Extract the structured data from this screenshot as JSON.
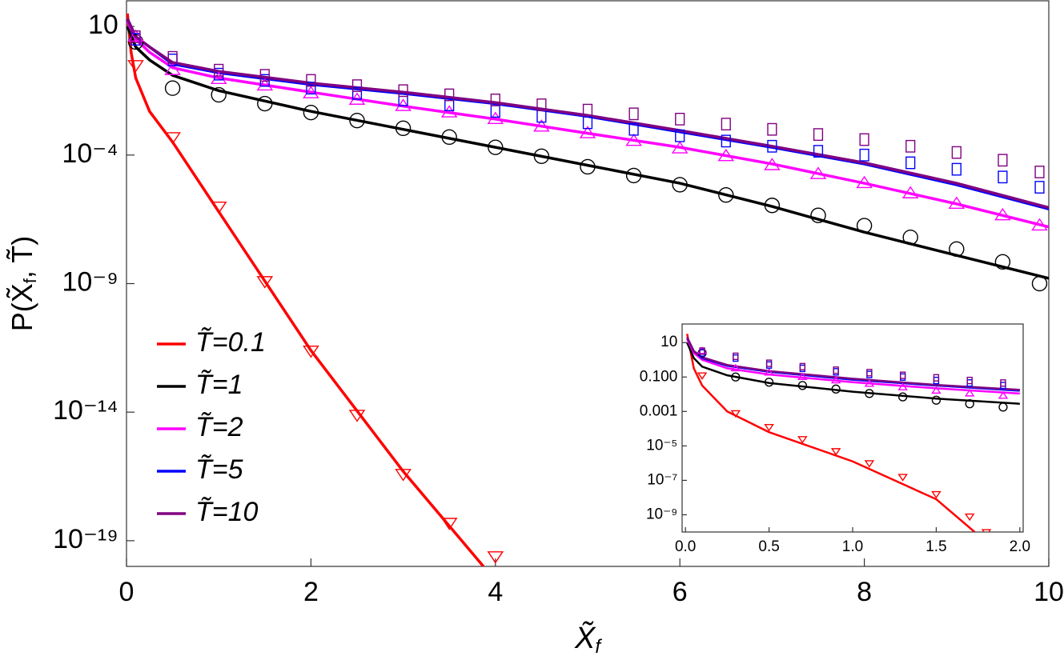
{
  "chart_data": [
    {
      "type": "line",
      "log_y": true,
      "xlabel": [
        "X̃",
        "f"
      ],
      "ylabel": [
        "P(X̃",
        "f",
        ", T̃)"
      ],
      "xlim": [
        0,
        10
      ],
      "ylim": [
        1e-20,
        100
      ],
      "xticks": [
        0,
        2,
        4,
        6,
        8,
        10
      ],
      "yticks": [
        10,
        {
          "value": 0.0001,
          "label": "10⁻⁴"
        },
        {
          "value": 1e-09,
          "label": "10⁻⁹"
        },
        {
          "value": 1e-14,
          "label": "10⁻¹⁴"
        },
        {
          "value": 1e-19,
          "label": "10⁻¹⁹"
        }
      ],
      "legend": "lower left",
      "series": [
        {
          "name": "T̃=0.1",
          "color": "#ff0000",
          "x": [
            0.01,
            0.05,
            0.1,
            0.25,
            0.5,
            1,
            2,
            3,
            3.87
          ],
          "values": [
            32,
            1,
            0.1,
            0.005,
            0.00032,
            6.3e-07,
            2.5e-12,
            5e-17,
            1e-20
          ]
        },
        {
          "name": "T̃=1",
          "color": "#000000",
          "x": [
            0.01,
            0.1,
            0.25,
            0.5,
            1,
            2,
            3,
            4,
            5,
            6,
            7,
            8,
            9,
            10
          ],
          "values": [
            10,
            1.6,
            0.5,
            0.126,
            0.032,
            0.005,
            0.001,
            0.0002,
            4e-05,
            8e-06,
            1e-06,
            1e-07,
            1.26e-08,
            1.6e-09
          ]
        },
        {
          "name": "T̃=2",
          "color": "#ff00ff",
          "x": [
            0.01,
            0.1,
            0.25,
            0.5,
            1,
            2,
            3,
            4,
            5,
            6,
            7,
            8,
            9,
            10
          ],
          "values": [
            16,
            3.2,
            1,
            0.25,
            0.1,
            0.028,
            0.008,
            0.0025,
            0.0007,
            0.0002,
            4.5e-05,
            8e-06,
            1.26e-06,
            1.6e-07
          ]
        },
        {
          "name": "T̃=5",
          "color": "#0000ff",
          "x": [
            0.01,
            0.1,
            0.25,
            0.5,
            1,
            2,
            3,
            4,
            5,
            6,
            7,
            8,
            9,
            10
          ],
          "values": [
            20,
            4,
            1.6,
            0.35,
            0.16,
            0.056,
            0.025,
            0.01,
            0.0032,
            0.0008,
            0.0002,
            4.5e-05,
            7e-06,
            8e-07
          ]
        },
        {
          "name": "T̃=10",
          "color": "#800080",
          "x": [
            0.01,
            0.1,
            0.25,
            0.5,
            1,
            2,
            3,
            4,
            5,
            6,
            7,
            8,
            9,
            10
          ],
          "values": [
            20,
            4,
            1.6,
            0.4,
            0.18,
            0.063,
            0.028,
            0.011,
            0.0035,
            0.0009,
            0.00022,
            5e-05,
            8e-06,
            9e-07
          ]
        },
        {
          "color": "#ff0000",
          "marker": "triangle-down",
          "x": [
            0.1,
            0.5,
            1,
            1.5,
            2,
            2.5,
            3,
            3.5,
            4
          ],
          "values": [
            0.32,
            0.0005,
            1e-06,
            1.26e-09,
            2.5e-12,
            8e-15,
            4e-17,
            5e-19,
            2.5e-20
          ]
        },
        {
          "color": "#000000",
          "marker": "circle",
          "x": [
            0.1,
            0.5,
            1,
            1.5,
            2,
            2.5,
            3,
            3.5,
            4,
            4.5,
            5,
            5.5,
            6,
            6.5,
            7,
            7.5,
            8,
            8.5,
            9,
            9.5,
            9.9
          ],
          "values": [
            2.5,
            0.04,
            0.022,
            0.01,
            0.0045,
            0.0022,
            0.0011,
            0.0005,
            0.0002,
            9e-05,
            3.5e-05,
            1.6e-05,
            7e-06,
            2.8e-06,
            1.1e-06,
            4.5e-07,
            1.8e-07,
            6.3e-08,
            2.2e-08,
            7e-09,
            1e-09
          ]
        },
        {
          "color": "#ff00ff",
          "marker": "triangle-up",
          "x": [
            0.1,
            0.5,
            1,
            1.5,
            2,
            2.5,
            3,
            3.5,
            4,
            4.5,
            5,
            5.5,
            6,
            6.5,
            7,
            7.5,
            8,
            8.5,
            9,
            9.5,
            9.9
          ],
          "values": [
            4,
            0.2,
            0.09,
            0.05,
            0.025,
            0.014,
            0.008,
            0.0045,
            0.0025,
            0.00126,
            0.0007,
            0.00035,
            0.00018,
            9e-05,
            4e-05,
            1.8e-05,
            8e-06,
            3.2e-06,
            1.26e-06,
            4.5e-07,
            1.8e-07
          ]
        },
        {
          "color": "#0000ff",
          "marker": "square",
          "x": [
            0.1,
            0.5,
            1,
            1.5,
            2,
            2.5,
            3,
            3.5,
            4,
            4.5,
            5,
            5.5,
            6,
            6.5,
            7,
            7.5,
            8,
            8.5,
            9,
            9.5,
            9.9
          ],
          "values": [
            3.2,
            0.5,
            0.14,
            0.08,
            0.04,
            0.025,
            0.014,
            0.009,
            0.005,
            0.0032,
            0.0018,
            0.001,
            0.00056,
            0.00035,
            0.00022,
            0.00014,
            0.0001,
            5e-05,
            2.8e-05,
            1.4e-05,
            5.6e-06
          ]
        },
        {
          "color": "#800080",
          "marker": "square",
          "x": [
            0.1,
            0.5,
            1,
            1.5,
            2,
            2.5,
            3,
            3.5,
            4,
            4.5,
            5,
            5.5,
            6,
            6.5,
            7,
            7.5,
            8,
            8.5,
            9,
            9.5,
            9.9
          ],
          "values": [
            4,
            0.63,
            0.2,
            0.126,
            0.08,
            0.05,
            0.032,
            0.022,
            0.014,
            0.009,
            0.0056,
            0.004,
            0.0025,
            0.0016,
            0.001,
            0.00063,
            0.0004,
            0.00022,
            0.000126,
            6.3e-05,
            2.2e-05
          ]
        }
      ]
    },
    {
      "type": "line",
      "log_y": true,
      "xlim": [
        -0.02,
        2.02
      ],
      "ylim": [
        1e-10,
        120
      ],
      "xticks": [
        {
          "value": 0,
          "label": "0.0"
        },
        0.5,
        {
          "value": 1,
          "label": "1.0"
        },
        1.5,
        {
          "value": 2,
          "label": "2.0"
        }
      ],
      "yticks": [
        10,
        {
          "value": 0.1,
          "label": "0.100"
        },
        0.001,
        {
          "value": 1e-05,
          "label": "10⁻⁵"
        },
        {
          "value": 1e-07,
          "label": "10⁻⁷"
        },
        {
          "value": 1e-09,
          "label": "10⁻⁹"
        }
      ],
      "series": [
        {
          "color": "#ff0000",
          "x": [
            0.01,
            0.05,
            0.1,
            0.25,
            0.5,
            1,
            1.5,
            1.73
          ],
          "values": [
            32,
            0.32,
            0.032,
            0.001,
            6.3e-05,
            1.26e-06,
            8e-09,
            1e-10
          ]
        },
        {
          "color": "#000000",
          "x": [
            0.01,
            0.05,
            0.1,
            0.25,
            0.5,
            1,
            1.5,
            2
          ],
          "values": [
            10,
            1.26,
            0.4,
            0.126,
            0.045,
            0.014,
            0.0056,
            0.0028
          ]
        },
        {
          "color": "#ff00ff",
          "x": [
            0.01,
            0.05,
            0.1,
            0.25,
            0.5,
            1,
            1.5,
            2
          ],
          "values": [
            16,
            2.5,
            1,
            0.32,
            0.14,
            0.05,
            0.022,
            0.011
          ]
        },
        {
          "color": "#0000ff",
          "x": [
            0.01,
            0.05,
            0.1,
            0.25,
            0.5,
            1,
            1.5,
            2
          ],
          "values": [
            20,
            3.2,
            1.26,
            0.45,
            0.2,
            0.07,
            0.032,
            0.016
          ]
        },
        {
          "color": "#800080",
          "x": [
            0.01,
            0.05,
            0.1,
            0.25,
            0.5,
            1,
            1.5,
            2
          ],
          "values": [
            20,
            3.2,
            1.4,
            0.5,
            0.22,
            0.08,
            0.035,
            0.018
          ]
        },
        {
          "color": "#ff0000",
          "marker": "triangle-down",
          "x": [
            0.1,
            0.3,
            0.5,
            0.7,
            0.9,
            1.1,
            1.3,
            1.5,
            1.7,
            1.8
          ],
          "values": [
            0.126,
            0.0008,
            0.000126,
            2.5e-05,
            5e-06,
            1e-06,
            1.6e-07,
            1.6e-08,
            8e-10,
            1e-10
          ]
        },
        {
          "color": "#000000",
          "marker": "circle",
          "x": [
            0.1,
            0.3,
            0.5,
            0.7,
            0.9,
            1.1,
            1.3,
            1.5,
            1.7,
            1.9
          ],
          "values": [
            2.5,
            0.1,
            0.05,
            0.032,
            0.02,
            0.011,
            0.007,
            0.0045,
            0.0028,
            0.0018
          ]
        },
        {
          "color": "#ff00ff",
          "marker": "triangle-up",
          "x": [
            0.1,
            0.3,
            0.5,
            0.7,
            0.9,
            1.1,
            1.3,
            1.5,
            1.7,
            1.9
          ],
          "values": [
            3.2,
            0.32,
            0.18,
            0.1,
            0.063,
            0.04,
            0.025,
            0.016,
            0.011,
            0.008
          ]
        },
        {
          "color": "#0000ff",
          "marker": "square",
          "x": [
            0.1,
            0.3,
            0.5,
            0.7,
            0.9,
            1.1,
            1.3,
            1.5,
            1.7,
            1.9
          ],
          "values": [
            2.5,
            1.26,
            0.5,
            0.32,
            0.2,
            0.14,
            0.1,
            0.063,
            0.045,
            0.032
          ]
        },
        {
          "color": "#800080",
          "marker": "square",
          "x": [
            0.1,
            0.3,
            0.5,
            0.7,
            0.9,
            1.1,
            1.3,
            1.5,
            1.7,
            1.9
          ],
          "values": [
            3.2,
            1.6,
            0.63,
            0.4,
            0.25,
            0.18,
            0.126,
            0.09,
            0.063,
            0.045
          ]
        }
      ]
    }
  ]
}
